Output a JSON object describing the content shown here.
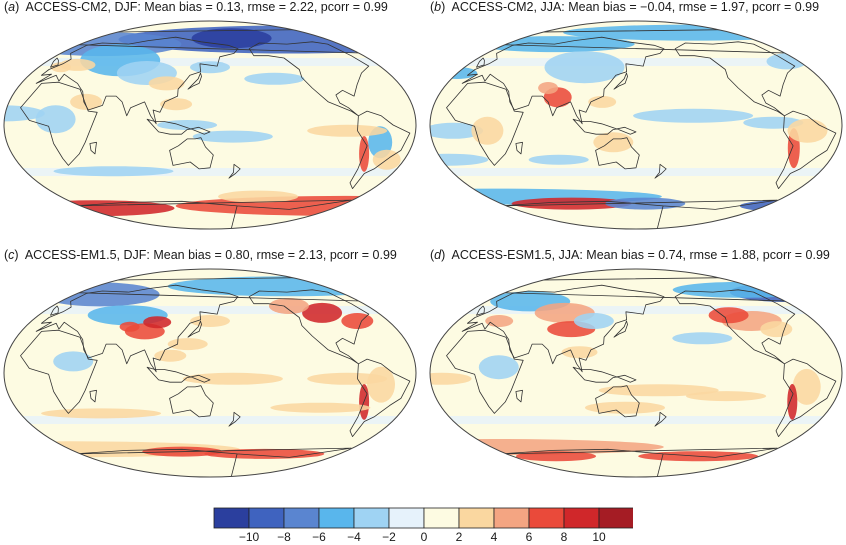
{
  "panels": [
    {
      "tag": "a",
      "title": "ACCESS-CM2, DJF: Mean bias = 0.13, rmse = 2.22, pcorr = 0.99"
    },
    {
      "tag": "b",
      "title": "ACCESS-CM2, JJA: Mean bias = −0.04, rmse = 1.97, pcorr = 0.99"
    },
    {
      "tag": "c",
      "title": "ACCESS-EM1.5, DJF: Mean bias = 0.80, rmse = 2.13, pcorr = 0.99"
    },
    {
      "tag": "d",
      "title": "ACCESS-ESM1.5, JJA: Mean bias = 0.74, rmse = 1.88, pcorr = 0.99"
    }
  ],
  "colorbar": {
    "ticks": [
      "−10",
      "−8",
      "−6",
      "−4",
      "−2",
      "0",
      "2",
      "4",
      "6",
      "8",
      "10"
    ],
    "colors": [
      "#2b3f9e",
      "#3f63bf",
      "#5a85d0",
      "#59b6ec",
      "#9fd3f3",
      "#e6f2fb",
      "#fdfbe2",
      "#fad7a0",
      "#f4a582",
      "#ea4a3a",
      "#d0272a",
      "#a51c24"
    ]
  }
}
